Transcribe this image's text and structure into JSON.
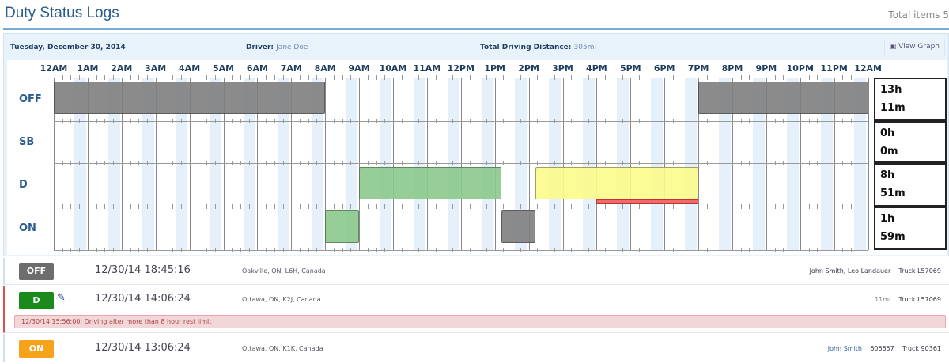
{
  "page": {
    "title": "Duty Status Logs",
    "total_items": "Total items 5"
  },
  "header": {
    "date": "Tuesday, December 30, 2014",
    "driver_label": "Driver:",
    "driver": "Jane Doe",
    "distance_label": "Total Driving Distance:",
    "distance": "305mi",
    "view_graph": "View Graph",
    "view_graph_icon": "image-icon"
  },
  "graph": {
    "hours": [
      "12AM",
      "1AM",
      "2AM",
      "3AM",
      "4AM",
      "5AM",
      "6AM",
      "7AM",
      "8AM",
      "9AM",
      "10AM",
      "11AM",
      "12PM",
      "1PM",
      "2PM",
      "3PM",
      "4PM",
      "5PM",
      "6PM",
      "7PM",
      "8PM",
      "9PM",
      "10PM",
      "11PM",
      "12AM"
    ],
    "rows": [
      {
        "label": "OFF",
        "total_h": "13h",
        "total_m": "11m"
      },
      {
        "label": "SB",
        "total_h": "0h",
        "total_m": "0m"
      },
      {
        "label": "D",
        "total_h": "8h",
        "total_m": "51m"
      },
      {
        "label": "ON",
        "total_h": "1h",
        "total_m": "59m"
      }
    ],
    "segments": [
      {
        "row": "OFF",
        "start": 0,
        "end": 8,
        "color": "#7f7f7f"
      },
      {
        "row": "OFF",
        "start": 19,
        "end": 24,
        "color": "#7f7f7f"
      },
      {
        "row": "ON",
        "start": 8,
        "end": 9,
        "color": "#8cc98c"
      },
      {
        "row": "D",
        "start": 9,
        "end": 13.2,
        "color": "#8cc98c"
      },
      {
        "row": "ON",
        "start": 13.2,
        "end": 14.2,
        "color": "#7f7f7f"
      },
      {
        "row": "D",
        "start": 14.2,
        "end": 19,
        "color": "#fcfc8c"
      }
    ],
    "violation": {
      "start": 16,
      "end": 19,
      "color": "#f06a6a"
    }
  },
  "logs": [
    {
      "status": "OFF",
      "color": "#6d6d6d",
      "time": "12/30/14 18:45:16",
      "location": "Oakville, ON, L6H, Canada",
      "people": "John Smith, Leo Landauer",
      "vehicle": "Truck L57069"
    },
    {
      "status": "D",
      "color": "#1a8a1a",
      "time": "12/30/14 14:06:24",
      "location": "Ottawa, ON, K2J, Canada",
      "distance": "11mi",
      "vehicle": "Truck L57069",
      "edit_icon": "pencil-icon",
      "alert": "12/30/14 15:56:00: Driving after more than 8 hour rest limit"
    },
    {
      "status": "ON",
      "color": "#f7a21b",
      "time": "12/30/14 13:06:24",
      "location": "Ottawa, ON, K1K, Canada",
      "people": "John Smith",
      "code": "606657",
      "vehicle": "Truck 90361"
    }
  ]
}
